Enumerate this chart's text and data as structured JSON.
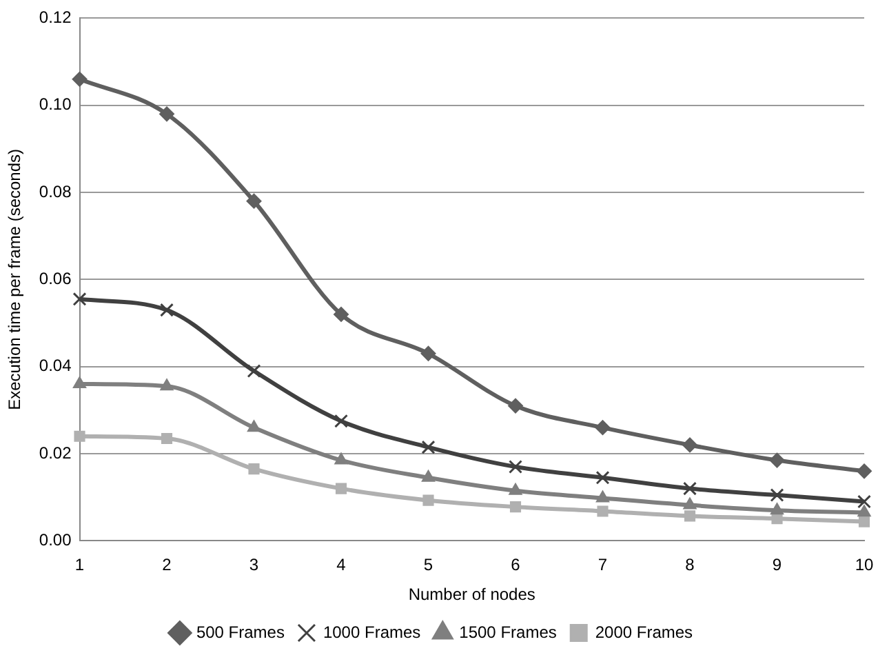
{
  "chart_data": {
    "type": "line",
    "xlabel": "Number of nodes",
    "ylabel": "Execution time per frame (seconds)",
    "categories": [
      "1",
      "2",
      "3",
      "4",
      "5",
      "6",
      "7",
      "8",
      "9",
      "10"
    ],
    "series": [
      {
        "name": "500 Frames",
        "color": "#5f5f5f",
        "marker": "diamond",
        "values": [
          0.106,
          0.098,
          0.078,
          0.052,
          0.043,
          0.031,
          0.026,
          0.022,
          0.0185,
          0.016
        ]
      },
      {
        "name": "1000 Frames",
        "color": "#404040",
        "marker": "cross",
        "values": [
          0.0555,
          0.053,
          0.039,
          0.0275,
          0.0215,
          0.017,
          0.0145,
          0.012,
          0.0105,
          0.009
        ]
      },
      {
        "name": "1500 Frames",
        "color": "#7f7f7f",
        "marker": "triangle",
        "values": [
          0.036,
          0.0355,
          0.026,
          0.0185,
          0.0145,
          0.0115,
          0.0098,
          0.0082,
          0.007,
          0.0065
        ]
      },
      {
        "name": "2000 Frames",
        "color": "#b0b0b0",
        "marker": "square",
        "values": [
          0.024,
          0.0235,
          0.0165,
          0.012,
          0.0093,
          0.0078,
          0.0068,
          0.0057,
          0.0051,
          0.0044
        ]
      }
    ],
    "ylim": [
      0,
      0.12
    ],
    "yticks": [
      {
        "value": 0,
        "label": "0.00"
      },
      {
        "value": 0.02,
        "label": "0.02"
      },
      {
        "value": 0.04,
        "label": "0.04"
      },
      {
        "value": 0.06,
        "label": "0.06"
      },
      {
        "value": 0.08,
        "label": "0.08"
      },
      {
        "value": 0.1,
        "label": "0.10"
      },
      {
        "value": 0.12,
        "label": "0.12"
      }
    ],
    "grid": "y",
    "legend": "bottom"
  }
}
